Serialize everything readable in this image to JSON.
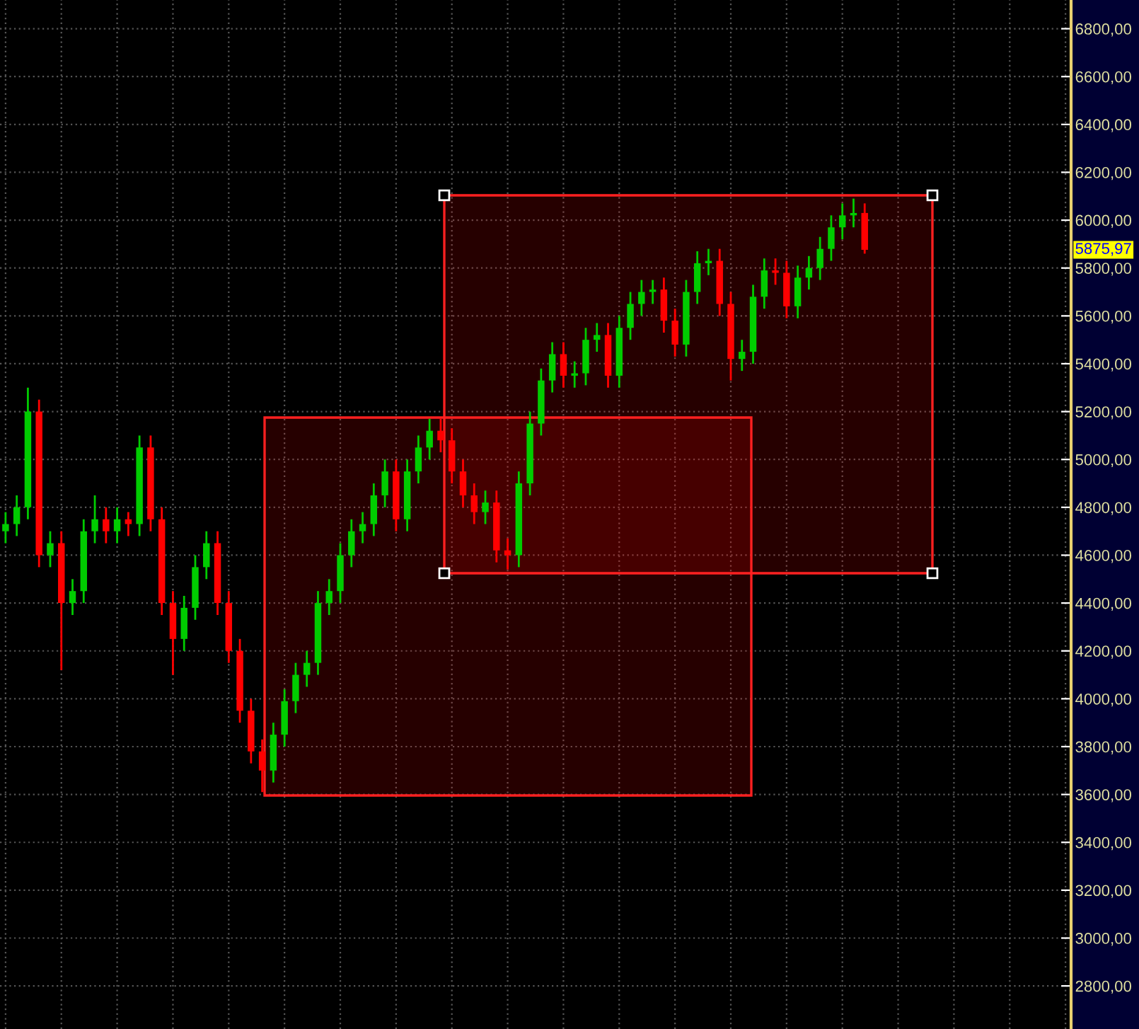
{
  "chart_data": {
    "type": "candlestick",
    "categories": [
      null,
      null,
      null,
      null,
      null,
      null,
      null,
      null,
      null,
      null,
      null,
      null,
      null,
      null,
      null,
      null,
      null,
      null,
      null,
      null,
      null,
      null,
      null,
      null,
      null,
      null,
      null,
      null,
      null,
      null,
      null,
      null,
      null,
      null,
      null,
      null,
      null,
      null,
      null,
      null,
      null,
      null,
      null,
      null,
      null,
      null,
      null,
      null,
      null,
      null,
      null,
      null,
      null,
      null,
      null,
      null,
      null,
      null,
      null,
      null,
      null,
      null,
      null,
      null,
      null,
      null,
      null,
      null,
      null,
      null,
      null,
      null,
      null,
      null,
      null,
      null,
      null,
      null,
      null,
      null,
      null,
      null,
      null,
      null,
      null,
      null,
      null,
      null,
      null,
      null,
      null,
      null,
      null,
      null,
      null,
      null
    ],
    "ohlc": [
      [
        4700,
        4780,
        4650,
        4730
      ],
      [
        4730,
        4850,
        4680,
        4800
      ],
      [
        4800,
        5300,
        4750,
        5200
      ],
      [
        5200,
        5250,
        4550,
        4600
      ],
      [
        4600,
        4700,
        4550,
        4650
      ],
      [
        4650,
        4700,
        4120,
        4400
      ],
      [
        4400,
        4500,
        4350,
        4450
      ],
      [
        4450,
        4750,
        4400,
        4700
      ],
      [
        4700,
        4850,
        4650,
        4750
      ],
      [
        4750,
        4800,
        4650,
        4700
      ],
      [
        4700,
        4800,
        4650,
        4750
      ],
      [
        4750,
        4780,
        4680,
        4730
      ],
      [
        4730,
        5100,
        4680,
        5050
      ],
      [
        5050,
        5100,
        4700,
        4750
      ],
      [
        4750,
        4800,
        4350,
        4400
      ],
      [
        4400,
        4450,
        4100,
        4250
      ],
      [
        4250,
        4430,
        4200,
        4380
      ],
      [
        4380,
        4600,
        4330,
        4550
      ],
      [
        4550,
        4700,
        4500,
        4650
      ],
      [
        4650,
        4700,
        4350,
        4400
      ],
      [
        4400,
        4450,
        4150,
        4200
      ],
      [
        4200,
        4250,
        3900,
        3950
      ],
      [
        3950,
        4000,
        3730,
        3780
      ],
      [
        3780,
        3830,
        3610,
        3700
      ],
      [
        3700,
        3900,
        3650,
        3850
      ],
      [
        3850,
        4040,
        3800,
        3990
      ],
      [
        3990,
        4150,
        3940,
        4100
      ],
      [
        4100,
        4200,
        4050,
        4150
      ],
      [
        4150,
        4450,
        4100,
        4400
      ],
      [
        4400,
        4500,
        4350,
        4450
      ],
      [
        4450,
        4650,
        4400,
        4600
      ],
      [
        4600,
        4750,
        4550,
        4700
      ],
      [
        4700,
        4780,
        4650,
        4730
      ],
      [
        4730,
        4900,
        4680,
        4850
      ],
      [
        4850,
        5000,
        4800,
        4950
      ],
      [
        4950,
        5000,
        4700,
        4750
      ],
      [
        4750,
        5000,
        4700,
        4950
      ],
      [
        4950,
        5100,
        4900,
        5050
      ],
      [
        5050,
        5170,
        5000,
        5120
      ],
      [
        5120,
        5170,
        5030,
        5080
      ],
      [
        5080,
        5130,
        4900,
        4950
      ],
      [
        4950,
        5000,
        4800,
        4850
      ],
      [
        4850,
        4900,
        4730,
        4780
      ],
      [
        4780,
        4870,
        4730,
        4820
      ],
      [
        4820,
        4870,
        4570,
        4620
      ],
      [
        4620,
        4670,
        4540,
        4600
      ],
      [
        4600,
        4950,
        4550,
        4900
      ],
      [
        4900,
        5200,
        4850,
        5150
      ],
      [
        5150,
        5380,
        5100,
        5330
      ],
      [
        5330,
        5490,
        5280,
        5440
      ],
      [
        5440,
        5490,
        5300,
        5350
      ],
      [
        5350,
        5410,
        5300,
        5360
      ],
      [
        5360,
        5550,
        5310,
        5500
      ],
      [
        5500,
        5570,
        5450,
        5520
      ],
      [
        5520,
        5570,
        5300,
        5350
      ],
      [
        5350,
        5600,
        5300,
        5550
      ],
      [
        5550,
        5700,
        5500,
        5650
      ],
      [
        5650,
        5750,
        5600,
        5700
      ],
      [
        5700,
        5750,
        5650,
        5710
      ],
      [
        5710,
        5760,
        5530,
        5580
      ],
      [
        5580,
        5630,
        5430,
        5480
      ],
      [
        5480,
        5750,
        5430,
        5700
      ],
      [
        5700,
        5870,
        5650,
        5820
      ],
      [
        5820,
        5880,
        5770,
        5830
      ],
      [
        5830,
        5880,
        5600,
        5650
      ],
      [
        5650,
        5700,
        5330,
        5420
      ],
      [
        5420,
        5500,
        5370,
        5450
      ],
      [
        5450,
        5730,
        5400,
        5680
      ],
      [
        5680,
        5840,
        5630,
        5790
      ],
      [
        5790,
        5840,
        5730,
        5780
      ],
      [
        5780,
        5830,
        5590,
        5640
      ],
      [
        5640,
        5810,
        5590,
        5760
      ],
      [
        5760,
        5850,
        5710,
        5800
      ],
      [
        5800,
        5930,
        5750,
        5880
      ],
      [
        5880,
        6020,
        5830,
        5970
      ],
      [
        5970,
        6070,
        5920,
        6020
      ],
      [
        6020,
        6090,
        5970,
        6030
      ],
      [
        6030,
        6070,
        5860,
        5875.97
      ],
      null,
      null,
      null,
      null,
      null,
      null,
      null,
      null,
      null,
      null,
      null,
      null,
      null,
      null,
      null,
      null,
      null,
      null
    ],
    "colors": [
      "#00cc00",
      "#00cc00",
      "#00cc00",
      "#ff0000",
      "#00cc00",
      "#ff0000",
      "#00cc00",
      "#00cc00",
      "#00cc00",
      "#ff0000",
      "#00cc00",
      "#ff0000",
      "#00cc00",
      "#ff0000",
      "#ff0000",
      "#ff0000",
      "#00cc00",
      "#00cc00",
      "#00cc00",
      "#ff0000",
      "#ff0000",
      "#ff0000",
      "#ff0000",
      "#ff0000",
      "#00cc00",
      "#00cc00",
      "#00cc00",
      "#00cc00",
      "#00cc00",
      "#00cc00",
      "#00cc00",
      "#00cc00",
      "#00cc00",
      "#00cc00",
      "#00cc00",
      "#ff0000",
      "#00cc00",
      "#00cc00",
      "#00cc00",
      "#ff0000",
      "#ff0000",
      "#ff0000",
      "#ff0000",
      "#00cc00",
      "#ff0000",
      "#ff0000",
      "#00cc00",
      "#00cc00",
      "#00cc00",
      "#00cc00",
      "#ff0000",
      "#00cc00",
      "#00cc00",
      "#00cc00",
      "#ff0000",
      "#00cc00",
      "#00cc00",
      "#00cc00",
      "#00cc00",
      "#ff0000",
      "#ff0000",
      "#00cc00",
      "#00cc00",
      "#00cc00",
      "#ff0000",
      "#ff0000",
      "#00cc00",
      "#00cc00",
      "#00cc00",
      "#ff0000",
      "#ff0000",
      "#00cc00",
      "#00cc00",
      "#00cc00",
      "#00cc00",
      "#00cc00",
      "#00cc00",
      "#ff0000",
      null,
      null,
      null,
      null,
      null,
      null,
      null,
      null,
      null,
      null,
      null,
      null,
      null,
      null,
      null,
      null,
      null,
      null
    ],
    "ylim": [
      2620,
      6920
    ],
    "yticks": [
      {
        "value": 2800,
        "label": "2800,00"
      },
      {
        "value": 3000,
        "label": "3000,00"
      },
      {
        "value": 3200,
        "label": "3200,00"
      },
      {
        "value": 3400,
        "label": "3400,00"
      },
      {
        "value": 3600,
        "label": "3600,00"
      },
      {
        "value": 3800,
        "label": "3800,00"
      },
      {
        "value": 4000,
        "label": "4000,00"
      },
      {
        "value": 4200,
        "label": "4200,00"
      },
      {
        "value": 4400,
        "label": "4400,00"
      },
      {
        "value": 4600,
        "label": "4600,00"
      },
      {
        "value": 4800,
        "label": "4800,00"
      },
      {
        "value": 5000,
        "label": "5000,00"
      },
      {
        "value": 5200,
        "label": "5200,00"
      },
      {
        "value": 5400,
        "label": "5400,00"
      },
      {
        "value": 5600,
        "label": "5600,00"
      },
      {
        "value": 5800,
        "label": "5800,00"
      },
      {
        "value": 6000,
        "label": "6000,00"
      },
      {
        "value": 6200,
        "label": "6200,00"
      },
      {
        "value": 6400,
        "label": "6400,00"
      },
      {
        "value": 6600,
        "label": "6600,00"
      },
      {
        "value": 6800,
        "label": "6800,00"
      }
    ],
    "annotations": [
      "5875,97"
    ],
    "grid": true
  }
}
